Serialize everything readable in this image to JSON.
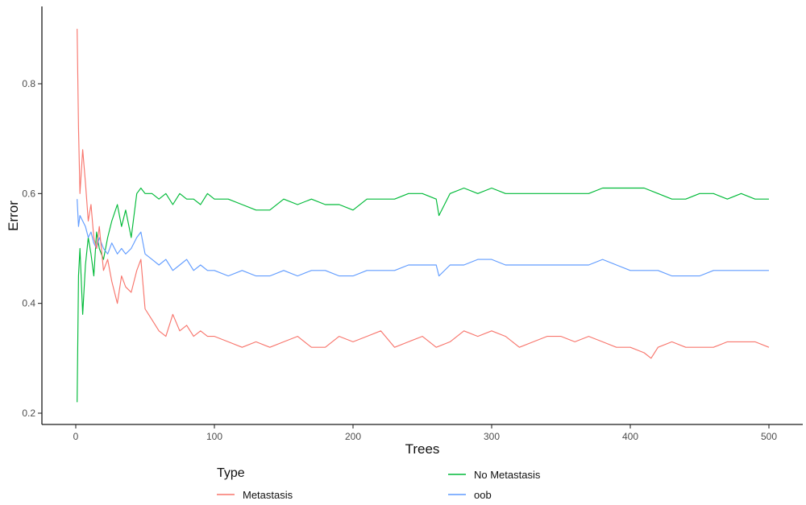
{
  "chart_data": {
    "type": "line",
    "title": "",
    "xlabel": "Trees",
    "ylabel": "Error",
    "xlim": [
      0,
      500
    ],
    "ylim": [
      0.2,
      0.9
    ],
    "x_ticks": [
      0,
      100,
      200,
      300,
      400,
      500
    ],
    "y_ticks": [
      0.2,
      0.4,
      0.6,
      0.8
    ],
    "x_tick_labels": [
      "0",
      "100",
      "200",
      "300",
      "400",
      "500"
    ],
    "y_tick_labels": [
      "0.2",
      "0.4",
      "0.6",
      "0.8"
    ],
    "grid": false,
    "legend": {
      "title": "Type",
      "position": "bottom",
      "entries": [
        "Metastasis",
        "No Metastasis",
        "oob"
      ]
    },
    "series": [
      {
        "name": "Metastasis",
        "color": "#F8766D",
        "x": [
          1,
          2,
          3,
          5,
          7,
          9,
          11,
          13,
          15,
          17,
          20,
          23,
          26,
          30,
          33,
          36,
          40,
          44,
          47,
          50,
          55,
          60,
          65,
          70,
          75,
          80,
          85,
          90,
          95,
          100,
          110,
          120,
          130,
          140,
          150,
          160,
          170,
          180,
          190,
          200,
          210,
          220,
          230,
          240,
          250,
          260,
          270,
          280,
          290,
          300,
          310,
          320,
          330,
          340,
          350,
          360,
          370,
          380,
          390,
          400,
          410,
          415,
          420,
          430,
          440,
          450,
          460,
          470,
          480,
          490,
          500
        ],
        "y": [
          0.9,
          0.72,
          0.6,
          0.68,
          0.62,
          0.55,
          0.58,
          0.52,
          0.5,
          0.54,
          0.46,
          0.48,
          0.44,
          0.4,
          0.45,
          0.43,
          0.42,
          0.46,
          0.48,
          0.39,
          0.37,
          0.35,
          0.34,
          0.38,
          0.35,
          0.36,
          0.34,
          0.35,
          0.34,
          0.34,
          0.33,
          0.32,
          0.33,
          0.32,
          0.33,
          0.34,
          0.32,
          0.32,
          0.34,
          0.33,
          0.34,
          0.35,
          0.32,
          0.33,
          0.34,
          0.32,
          0.33,
          0.35,
          0.34,
          0.35,
          0.34,
          0.32,
          0.33,
          0.34,
          0.34,
          0.33,
          0.34,
          0.33,
          0.32,
          0.32,
          0.31,
          0.3,
          0.32,
          0.33,
          0.32,
          0.32,
          0.32,
          0.33,
          0.33,
          0.33,
          0.32
        ]
      },
      {
        "name": "No Metastasis",
        "color": "#00BA38",
        "x": [
          1,
          2,
          3,
          5,
          7,
          9,
          11,
          13,
          15,
          17,
          20,
          23,
          26,
          30,
          33,
          36,
          40,
          44,
          47,
          50,
          55,
          60,
          65,
          70,
          75,
          80,
          85,
          90,
          95,
          100,
          110,
          120,
          130,
          140,
          150,
          160,
          170,
          180,
          190,
          200,
          210,
          220,
          230,
          240,
          250,
          260,
          262,
          270,
          280,
          290,
          300,
          310,
          320,
          330,
          340,
          350,
          360,
          370,
          380,
          390,
          400,
          410,
          420,
          430,
          440,
          450,
          460,
          470,
          480,
          490,
          500
        ],
        "y": [
          0.22,
          0.45,
          0.5,
          0.38,
          0.47,
          0.52,
          0.49,
          0.45,
          0.53,
          0.5,
          0.48,
          0.52,
          0.55,
          0.58,
          0.54,
          0.57,
          0.52,
          0.6,
          0.61,
          0.6,
          0.6,
          0.59,
          0.6,
          0.58,
          0.6,
          0.59,
          0.59,
          0.58,
          0.6,
          0.59,
          0.59,
          0.58,
          0.57,
          0.57,
          0.59,
          0.58,
          0.59,
          0.58,
          0.58,
          0.57,
          0.59,
          0.59,
          0.59,
          0.6,
          0.6,
          0.59,
          0.56,
          0.6,
          0.61,
          0.6,
          0.61,
          0.6,
          0.6,
          0.6,
          0.6,
          0.6,
          0.6,
          0.6,
          0.61,
          0.61,
          0.61,
          0.61,
          0.6,
          0.59,
          0.59,
          0.6,
          0.6,
          0.59,
          0.6,
          0.59,
          0.59
        ]
      },
      {
        "name": "oob",
        "color": "#619CFF",
        "x": [
          1,
          2,
          3,
          5,
          7,
          9,
          11,
          13,
          15,
          17,
          20,
          23,
          26,
          30,
          33,
          36,
          40,
          44,
          47,
          50,
          55,
          60,
          65,
          70,
          75,
          80,
          85,
          90,
          95,
          100,
          110,
          120,
          130,
          140,
          150,
          160,
          170,
          180,
          190,
          200,
          210,
          220,
          230,
          240,
          250,
          260,
          262,
          270,
          280,
          290,
          300,
          310,
          320,
          330,
          340,
          350,
          360,
          370,
          380,
          390,
          400,
          410,
          420,
          430,
          440,
          450,
          460,
          470,
          480,
          490,
          500
        ],
        "y": [
          0.59,
          0.54,
          0.56,
          0.55,
          0.54,
          0.52,
          0.53,
          0.51,
          0.5,
          0.52,
          0.5,
          0.49,
          0.51,
          0.49,
          0.5,
          0.49,
          0.5,
          0.52,
          0.53,
          0.49,
          0.48,
          0.47,
          0.48,
          0.46,
          0.47,
          0.48,
          0.46,
          0.47,
          0.46,
          0.46,
          0.45,
          0.46,
          0.45,
          0.45,
          0.46,
          0.45,
          0.46,
          0.46,
          0.45,
          0.45,
          0.46,
          0.46,
          0.46,
          0.47,
          0.47,
          0.47,
          0.45,
          0.47,
          0.47,
          0.48,
          0.48,
          0.47,
          0.47,
          0.47,
          0.47,
          0.47,
          0.47,
          0.47,
          0.48,
          0.47,
          0.46,
          0.46,
          0.46,
          0.45,
          0.45,
          0.45,
          0.46,
          0.46,
          0.46,
          0.46,
          0.46
        ]
      }
    ]
  }
}
